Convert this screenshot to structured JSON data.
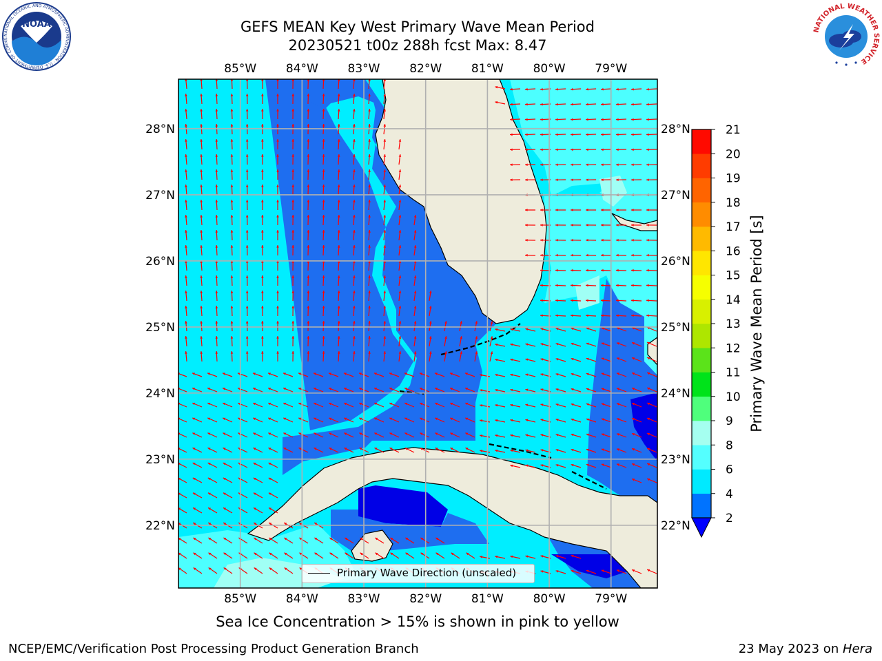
{
  "title": {
    "line1": "GEFS MEAN Key West Primary Wave Mean Period",
    "line2": "20230521 t00z 288h fcst   Max: 8.47"
  },
  "logos": {
    "noaa": {
      "text": "NOAA",
      "ring": "NATIONAL OCEANIC AND ATMOSPHERIC ADMINISTRATION · U.S. DEPARTMENT OF COMMERCE"
    },
    "nws": {
      "ring": "NATIONAL WEATHER SERVICE"
    }
  },
  "map": {
    "lon_labels": [
      "85°W",
      "84°W",
      "83°W",
      "82°W",
      "81°W",
      "80°W",
      "79°W"
    ],
    "lat_labels": [
      "28°N",
      "27°N",
      "26°N",
      "25°N",
      "24°N",
      "23°N",
      "22°N"
    ],
    "lon_range": [
      -86.0,
      -78.25
    ],
    "lat_range": [
      21.05,
      28.75
    ],
    "legend_label": "Primary Wave Direction (unscaled)",
    "land_color": "#eeecdc",
    "arrow_color": "#ff0000"
  },
  "colorbar": {
    "title": "Primary Wave Mean Period [s]",
    "tick_labels": [
      "2",
      "4",
      "6",
      "8",
      "9",
      "10",
      "11",
      "12",
      "13",
      "14",
      "15",
      "16",
      "17",
      "18",
      "19",
      "20",
      "21"
    ],
    "bins": [
      {
        "from": 2,
        "to": 4,
        "color": "#0073ff"
      },
      {
        "from": 4,
        "to": 6,
        "color": "#00eaff"
      },
      {
        "from": 6,
        "to": 8,
        "color": "#54ffff"
      },
      {
        "from": 8,
        "to": 9,
        "color": "#a5fff0"
      },
      {
        "from": 9,
        "to": 10,
        "color": "#4fff7c"
      },
      {
        "from": 10,
        "to": 11,
        "color": "#00e31a"
      },
      {
        "from": 11,
        "to": 12,
        "color": "#5be31a"
      },
      {
        "from": 12,
        "to": 13,
        "color": "#aee600"
      },
      {
        "from": 13,
        "to": 14,
        "color": "#d8f000"
      },
      {
        "from": 14,
        "to": 15,
        "color": "#f6ff00"
      },
      {
        "from": 15,
        "to": 16,
        "color": "#ffe600"
      },
      {
        "from": 16,
        "to": 17,
        "color": "#ffba00"
      },
      {
        "from": 17,
        "to": 18,
        "color": "#ff8c00"
      },
      {
        "from": 18,
        "to": 19,
        "color": "#ff6400"
      },
      {
        "from": 19,
        "to": 20,
        "color": "#ff3c00"
      },
      {
        "from": 20,
        "to": 21,
        "color": "#ff0a00"
      }
    ],
    "under_color": "#0000ff"
  },
  "field_colors": {
    "deep_blue": "#0000e6",
    "blue": "#1e6ef0",
    "cyan": "#00eeff",
    "light_cyan": "#4cffff",
    "pale": "#a0fff5"
  },
  "ice_note": "Sea Ice Concentration > 15% is shown in pink to yellow",
  "footer": {
    "left": "NCEP/EMC/Verification Post Processing Product Generation Branch",
    "right_prefix": "23 May 2023 on ",
    "right_host": "Hera"
  }
}
